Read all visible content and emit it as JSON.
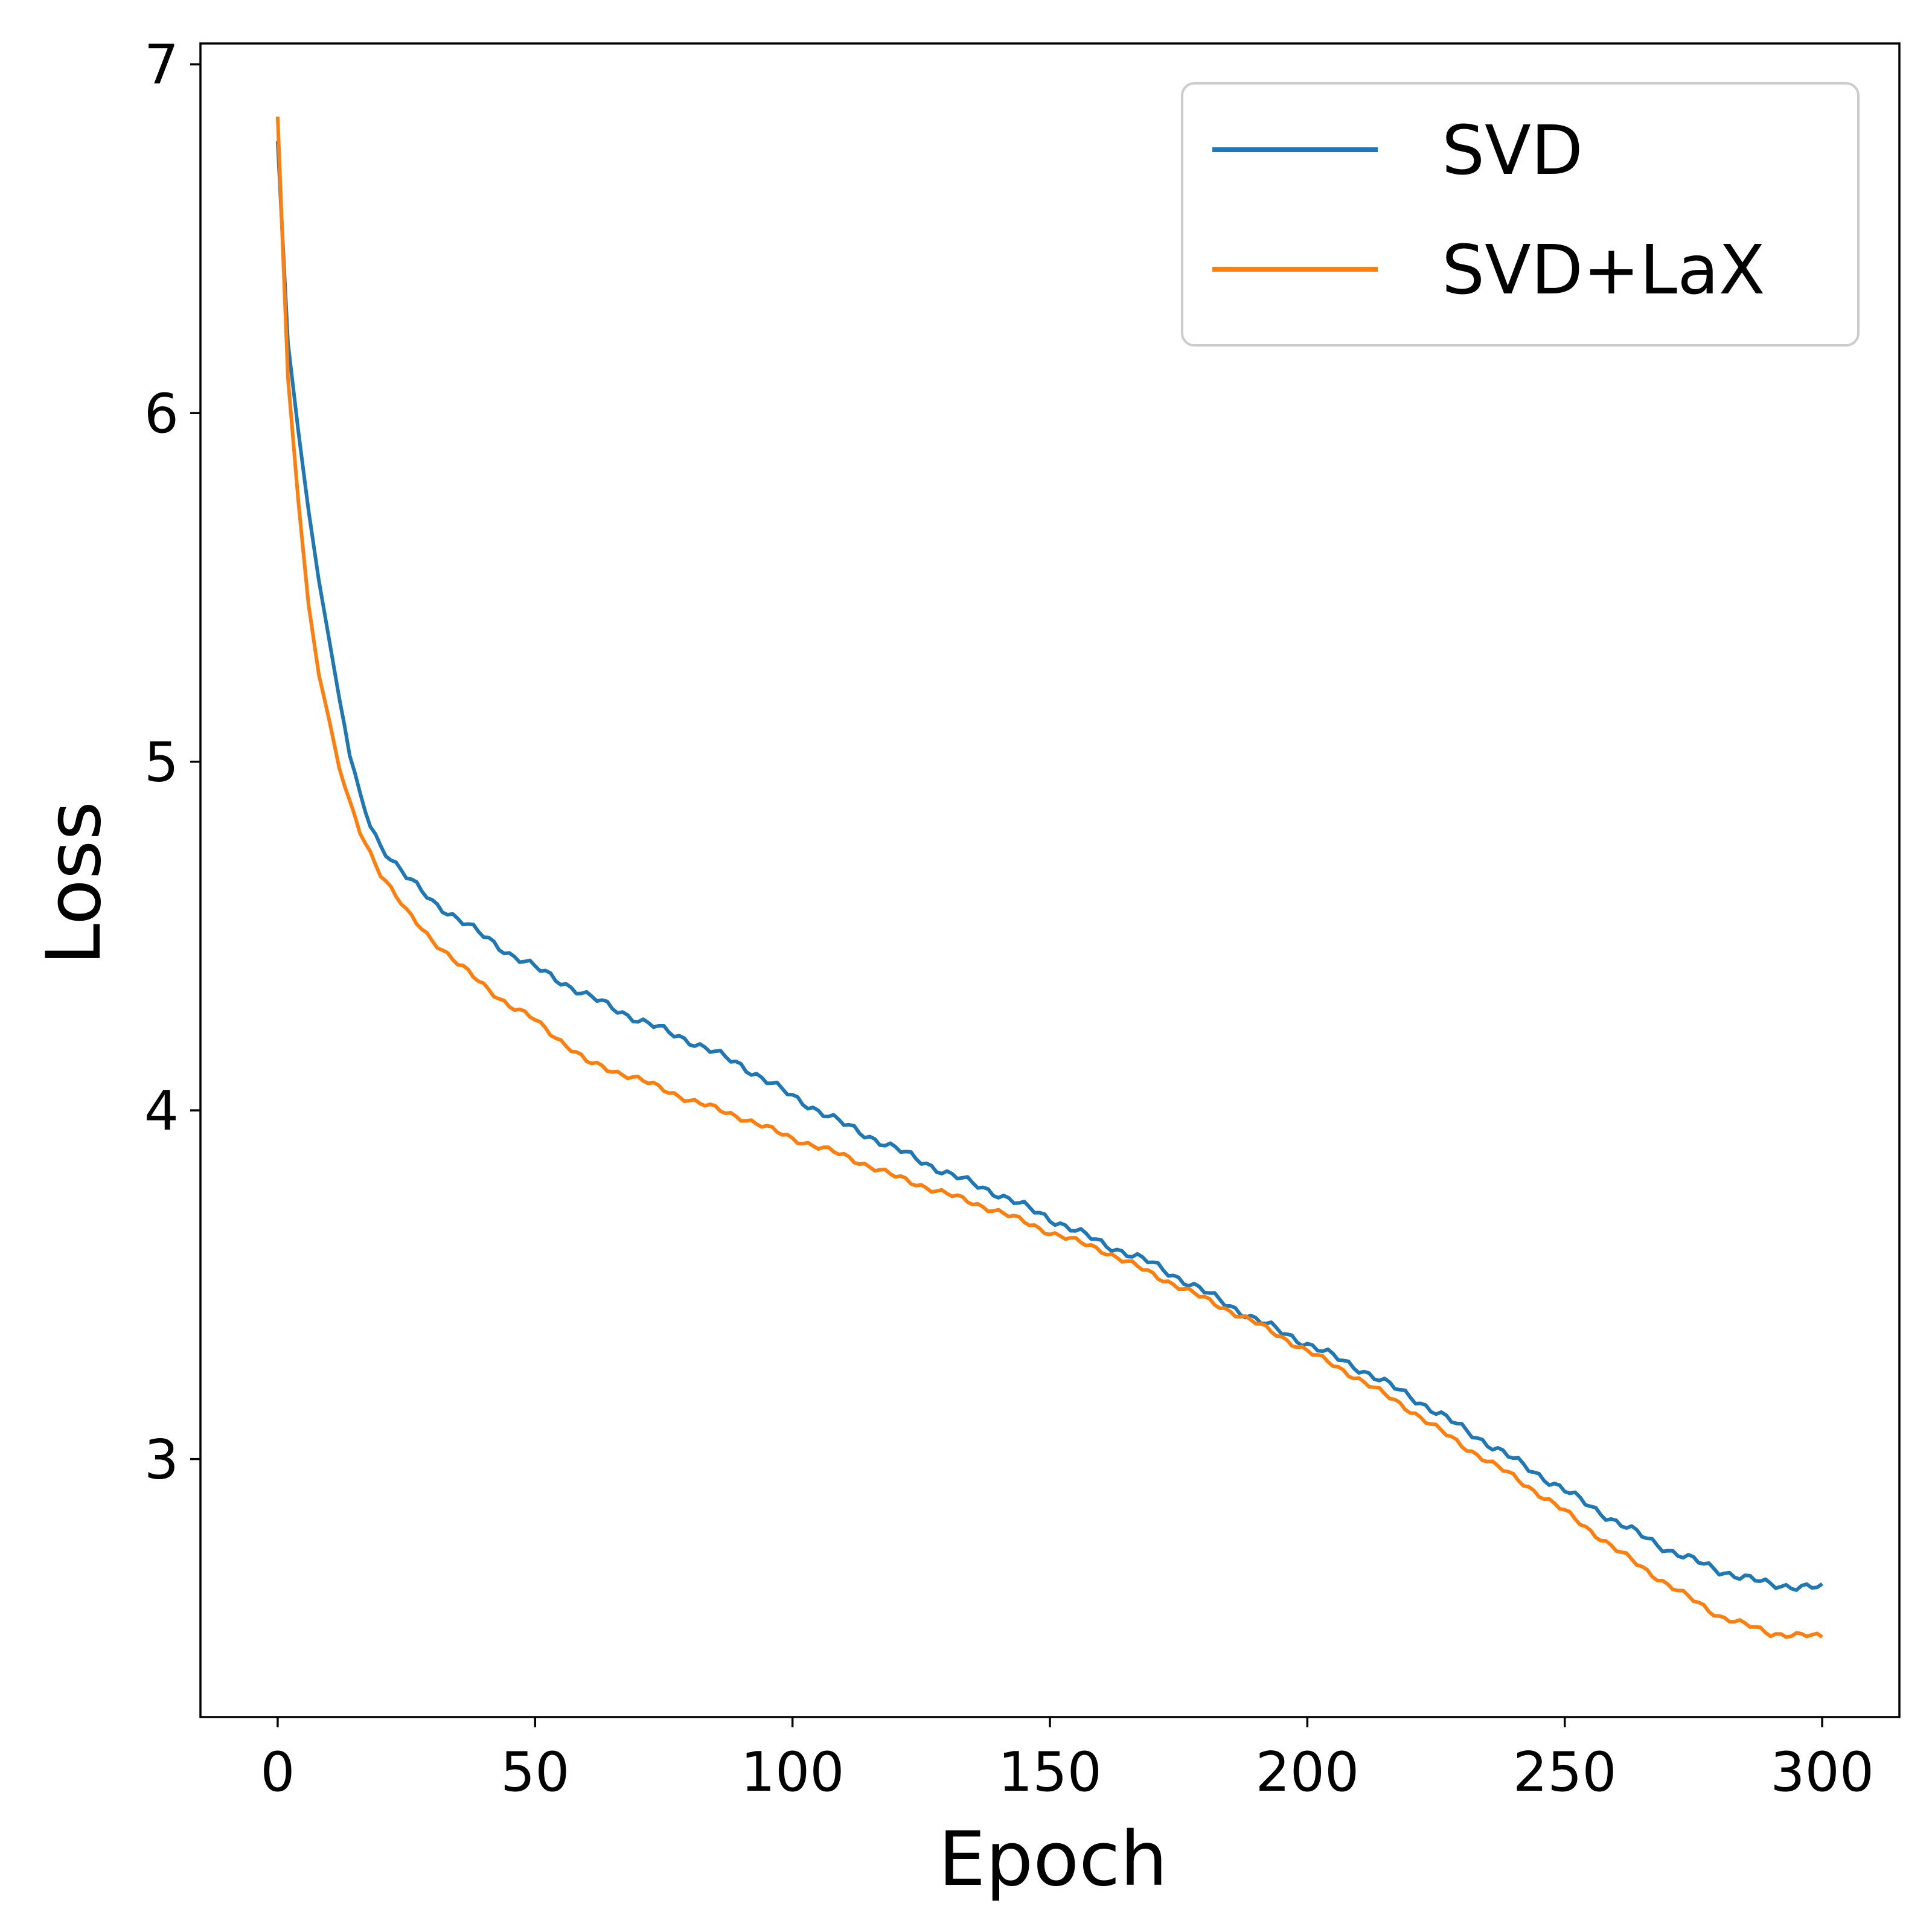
{
  "chart_data": {
    "type": "line",
    "title": "",
    "xlabel": "Epoch",
    "ylabel": "Loss",
    "xlim": [
      -15,
      315
    ],
    "ylim": [
      2.26,
      7.06
    ],
    "xticks": [
      0,
      50,
      100,
      150,
      200,
      250,
      300
    ],
    "xtick_labels": [
      "0",
      "50",
      "100",
      "150",
      "200",
      "250",
      "300"
    ],
    "yticks": [
      3,
      4,
      5,
      6,
      7
    ],
    "ytick_labels": [
      "3",
      "4",
      "5",
      "6",
      "7"
    ],
    "grid": false,
    "legend_position": "top-right",
    "series": [
      {
        "name": "SVD",
        "color": "#1f77b4",
        "anchors": [
          [
            0,
            6.78
          ],
          [
            2,
            6.2
          ],
          [
            4,
            5.95
          ],
          [
            6,
            5.72
          ],
          [
            8,
            5.52
          ],
          [
            10,
            5.35
          ],
          [
            12,
            5.18
          ],
          [
            14,
            5.02
          ],
          [
            16,
            4.9
          ],
          [
            18,
            4.82
          ],
          [
            20,
            4.76
          ],
          [
            25,
            4.67
          ],
          [
            30,
            4.6
          ],
          [
            35,
            4.55
          ],
          [
            40,
            4.5
          ],
          [
            45,
            4.45
          ],
          [
            50,
            4.41
          ],
          [
            55,
            4.37
          ],
          [
            60,
            4.33
          ],
          [
            70,
            4.26
          ],
          [
            80,
            4.2
          ],
          [
            90,
            4.13
          ],
          [
            100,
            4.04
          ],
          [
            110,
            3.96
          ],
          [
            120,
            3.89
          ],
          [
            130,
            3.82
          ],
          [
            140,
            3.76
          ],
          [
            150,
            3.69
          ],
          [
            160,
            3.62
          ],
          [
            170,
            3.56
          ],
          [
            180,
            3.48
          ],
          [
            190,
            3.4
          ],
          [
            200,
            3.33
          ],
          [
            210,
            3.26
          ],
          [
            220,
            3.18
          ],
          [
            230,
            3.09
          ],
          [
            240,
            3.0
          ],
          [
            250,
            2.91
          ],
          [
            260,
            2.82
          ],
          [
            270,
            2.74
          ],
          [
            280,
            2.68
          ],
          [
            290,
            2.64
          ],
          [
            300,
            2.63
          ]
        ],
        "jitter": 0.008
      },
      {
        "name": "SVD+LaX",
        "color": "#ff7f0e",
        "anchors": [
          [
            0,
            6.85
          ],
          [
            2,
            6.1
          ],
          [
            4,
            5.75
          ],
          [
            6,
            5.45
          ],
          [
            8,
            5.25
          ],
          [
            10,
            5.12
          ],
          [
            12,
            4.98
          ],
          [
            14,
            4.88
          ],
          [
            16,
            4.8
          ],
          [
            18,
            4.74
          ],
          [
            20,
            4.68
          ],
          [
            25,
            4.57
          ],
          [
            30,
            4.49
          ],
          [
            35,
            4.42
          ],
          [
            40,
            4.36
          ],
          [
            45,
            4.3
          ],
          [
            50,
            4.26
          ],
          [
            55,
            4.2
          ],
          [
            60,
            4.14
          ],
          [
            70,
            4.09
          ],
          [
            80,
            4.03
          ],
          [
            90,
            3.98
          ],
          [
            100,
            3.92
          ],
          [
            110,
            3.87
          ],
          [
            120,
            3.81
          ],
          [
            130,
            3.76
          ],
          [
            140,
            3.71
          ],
          [
            150,
            3.65
          ],
          [
            160,
            3.6
          ],
          [
            170,
            3.53
          ],
          [
            180,
            3.46
          ],
          [
            190,
            3.39
          ],
          [
            200,
            3.31
          ],
          [
            210,
            3.23
          ],
          [
            220,
            3.14
          ],
          [
            230,
            3.04
          ],
          [
            240,
            2.95
          ],
          [
            250,
            2.85
          ],
          [
            260,
            2.74
          ],
          [
            270,
            2.64
          ],
          [
            280,
            2.55
          ],
          [
            290,
            2.5
          ],
          [
            300,
            2.49
          ]
        ],
        "jitter": 0.006
      }
    ]
  }
}
